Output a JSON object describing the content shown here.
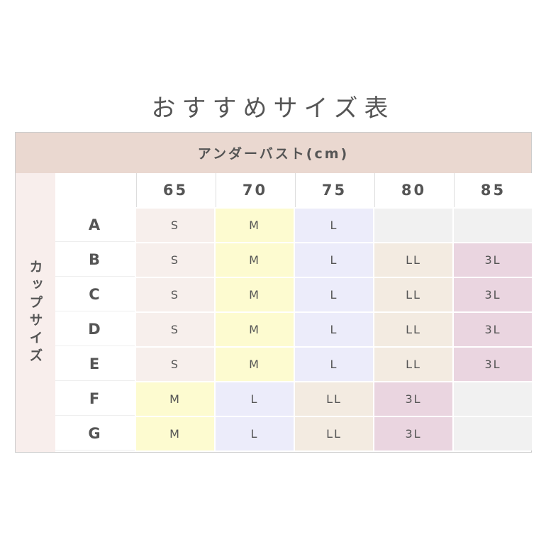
{
  "title": "おすすめサイズ表",
  "header": "アンダーバスト(cm)",
  "side_label": "カップサイズ",
  "columns": [
    "65",
    "70",
    "75",
    "80",
    "85"
  ],
  "rows": [
    {
      "cup": "A",
      "sizes": [
        "S",
        "M",
        "L",
        "",
        ""
      ]
    },
    {
      "cup": "B",
      "sizes": [
        "S",
        "M",
        "L",
        "LL",
        "3L"
      ]
    },
    {
      "cup": "C",
      "sizes": [
        "S",
        "M",
        "L",
        "LL",
        "3L"
      ]
    },
    {
      "cup": "D",
      "sizes": [
        "S",
        "M",
        "L",
        "LL",
        "3L"
      ]
    },
    {
      "cup": "E",
      "sizes": [
        "S",
        "M",
        "L",
        "LL",
        "3L"
      ]
    },
    {
      "cup": "F",
      "sizes": [
        "M",
        "L",
        "LL",
        "3L",
        ""
      ]
    },
    {
      "cup": "G",
      "sizes": [
        "M",
        "L",
        "LL",
        "3L",
        ""
      ]
    }
  ],
  "colors": {
    "S": "#f7efec",
    "M": "#fdfbd0",
    "L": "#ececfa",
    "LL": "#f3ebe1",
    "3L": "#ead5e0",
    "": "#f1f1f1"
  }
}
